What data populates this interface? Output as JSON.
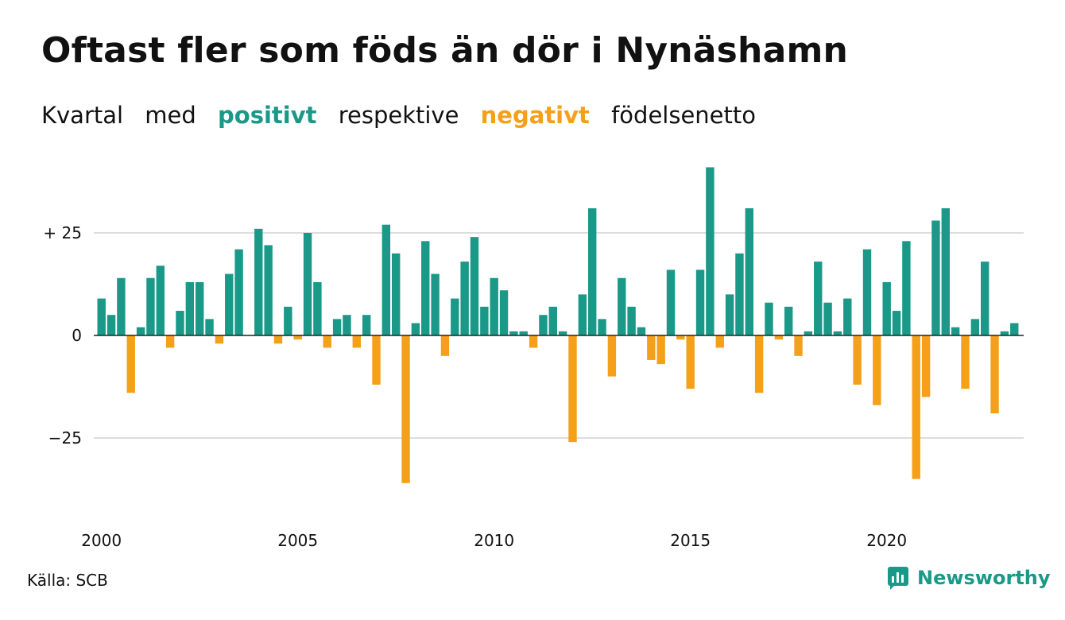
{
  "title": "Oftast fler som föds än dör i Nynäshamn",
  "subtitle": {
    "part1": "Kvartal",
    "part2": "med",
    "positive_word": "positivt",
    "part3": "respektive",
    "negative_word": "negativt",
    "part4": "födelsenetto"
  },
  "colors": {
    "positive": "#1a9988",
    "negative": "#f5a01a",
    "grid": "#dddddd",
    "baseline": "#222222"
  },
  "source": "Källa: SCB",
  "logo": {
    "text": "Newsworthy",
    "icon": "newsworthy-bar-chart-icon"
  },
  "chart_data": {
    "type": "bar",
    "title": "Oftast fler som föds än dör i Nynäshamn",
    "xlabel": "",
    "ylabel": "",
    "ylim": [
      -45,
      48
    ],
    "grid": true,
    "y_ticks": [
      {
        "value": 25,
        "label": "+ 25"
      },
      {
        "value": 0,
        "label": "0"
      },
      {
        "value": -25,
        "label": "−25"
      }
    ],
    "x_ticks": [
      "2000",
      "2005",
      "2010",
      "2015",
      "2020"
    ],
    "start_year": 2000,
    "values": [
      9,
      5,
      14,
      -14,
      2,
      14,
      17,
      -3,
      6,
      13,
      13,
      4,
      -2,
      15,
      21,
      0,
      26,
      22,
      -2,
      7,
      -1,
      25,
      13,
      -3,
      4,
      5,
      -3,
      5,
      -12,
      27,
      20,
      -36,
      3,
      23,
      15,
      -5,
      9,
      18,
      24,
      7,
      14,
      11,
      1,
      1,
      -3,
      5,
      7,
      1,
      -26,
      10,
      31,
      4,
      -10,
      14,
      7,
      2,
      -6,
      -7,
      16,
      -1,
      -13,
      16,
      41,
      -3,
      10,
      20,
      31,
      -14,
      8,
      -1,
      7,
      -5,
      1,
      18,
      8,
      1,
      9,
      -12,
      21,
      -17,
      13,
      6,
      23,
      -35,
      -15,
      28,
      31,
      2,
      -13,
      4,
      18,
      -19,
      1,
      3
    ]
  }
}
